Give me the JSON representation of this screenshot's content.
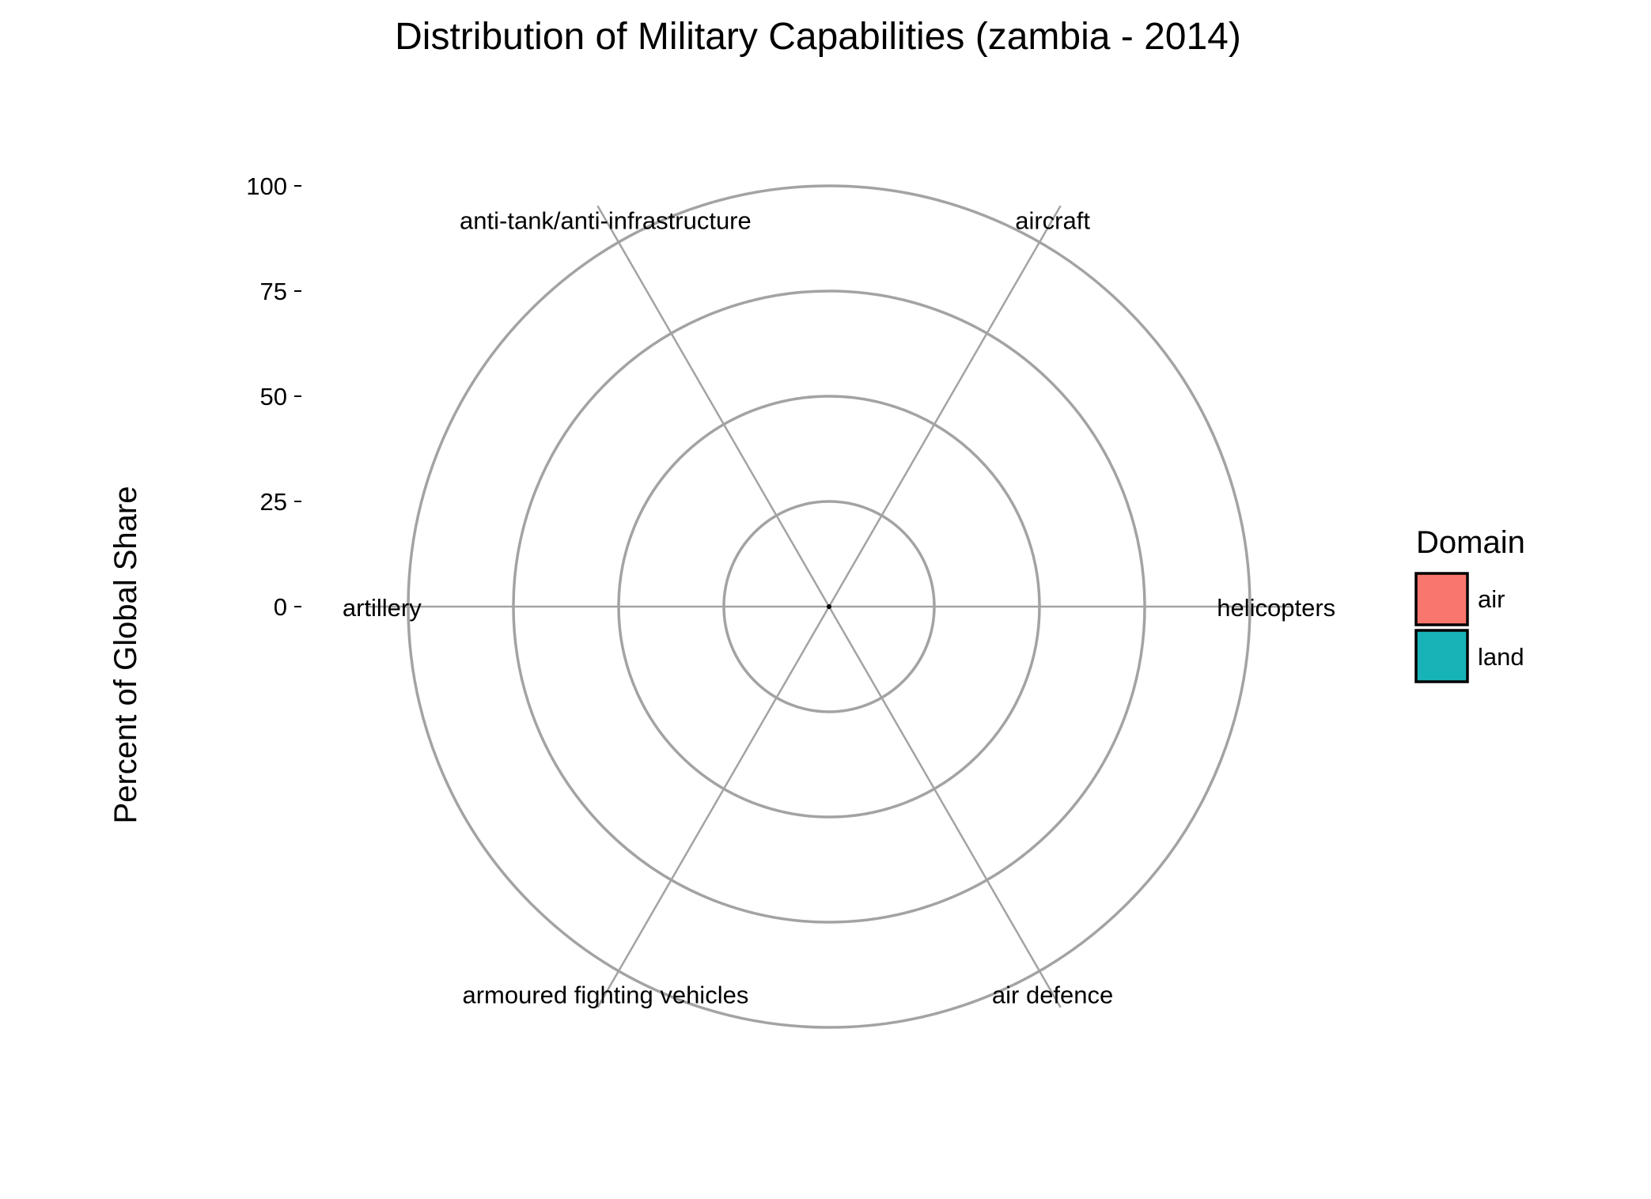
{
  "chart_data": {
    "type": "radar",
    "title": "Distribution of Military Capabilities (zambia - 2014)",
    "ylabel": "Percent of Global Share",
    "ylim": [
      0,
      100
    ],
    "yticks": [
      "0",
      "25",
      "50",
      "75",
      "100"
    ],
    "categories": [
      "helicopters",
      "aircraft",
      "anti-tank/anti-infrastructure",
      "artillery",
      "armoured fighting vehicles",
      "air defence"
    ],
    "series": [
      {
        "name": "air",
        "color": "#F8766D",
        "values": [
          0,
          0,
          0,
          0,
          0,
          0
        ]
      },
      {
        "name": "land",
        "color": "#00BFC4",
        "values": [
          0,
          0,
          0,
          0,
          0,
          0
        ]
      }
    ],
    "legend": {
      "title": "Domain",
      "placement": "right",
      "items": [
        {
          "label": "air",
          "color": "#F8766D"
        },
        {
          "label": "land",
          "color": "#17B3B7"
        }
      ]
    },
    "grid": true
  }
}
